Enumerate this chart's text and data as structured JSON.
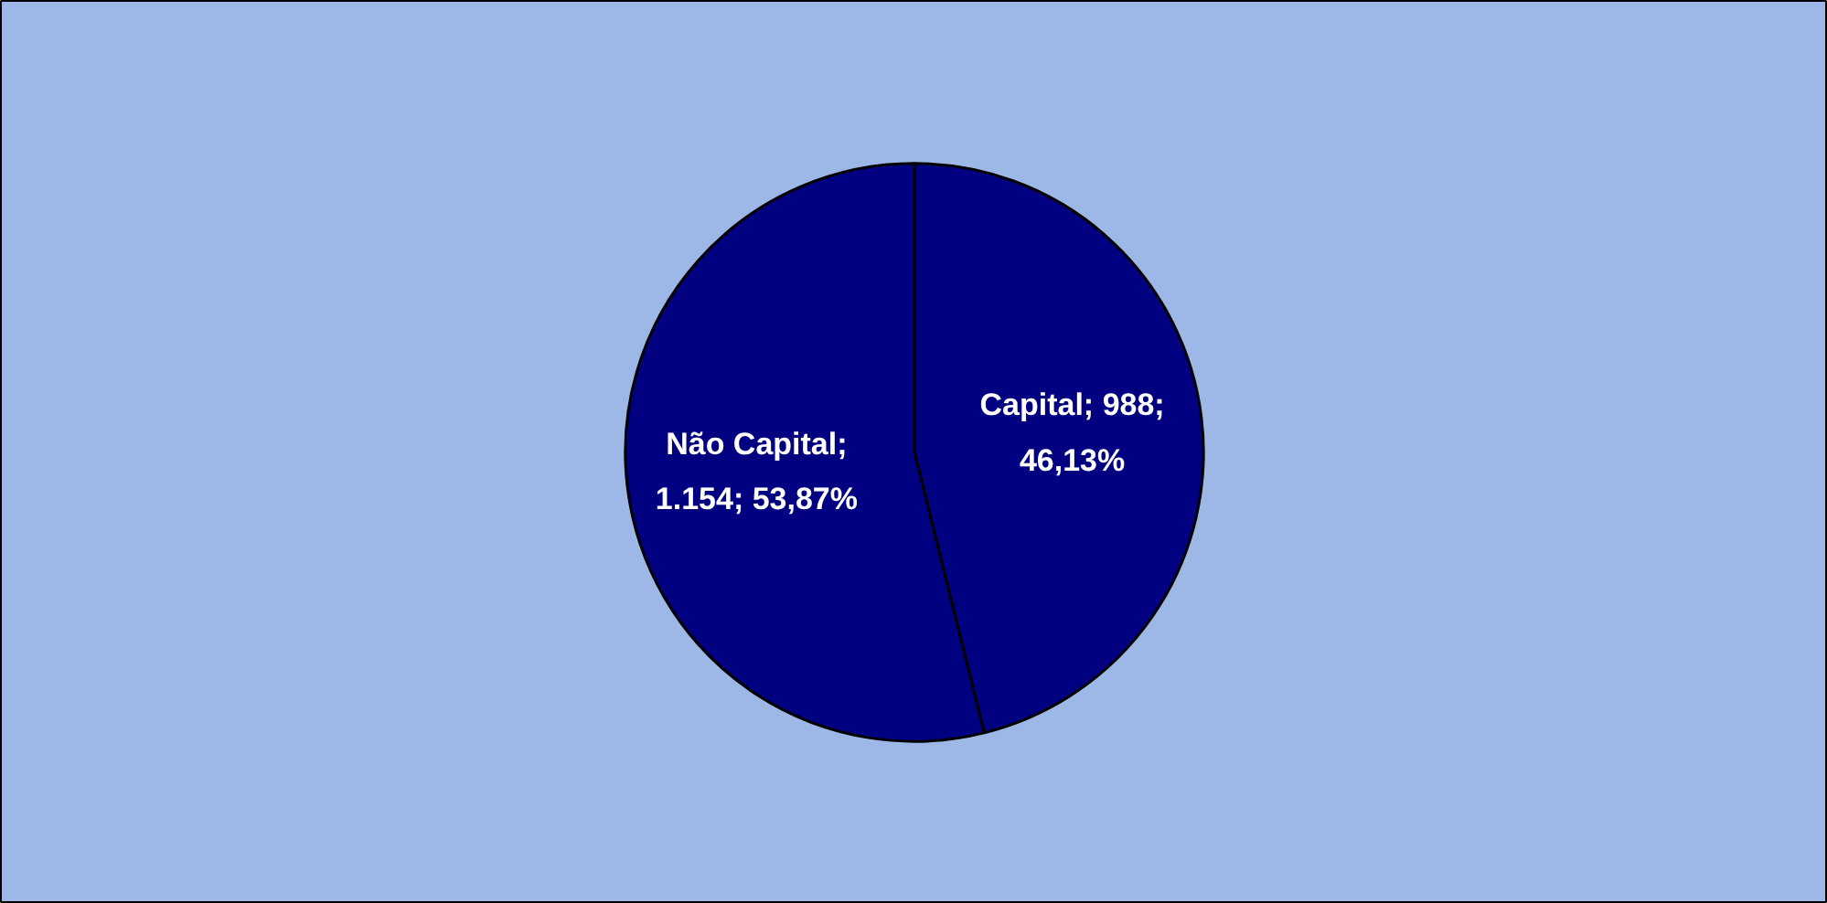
{
  "chart_data": {
    "type": "pie",
    "categories": [
      "Capital",
      "Não Capital"
    ],
    "values": [
      988,
      1154
    ],
    "colors": [
      "#000080",
      "#000080"
    ],
    "value_labels": [
      "; 988; 46,13%",
      "; 1.154; 53,87%"
    ]
  }
}
